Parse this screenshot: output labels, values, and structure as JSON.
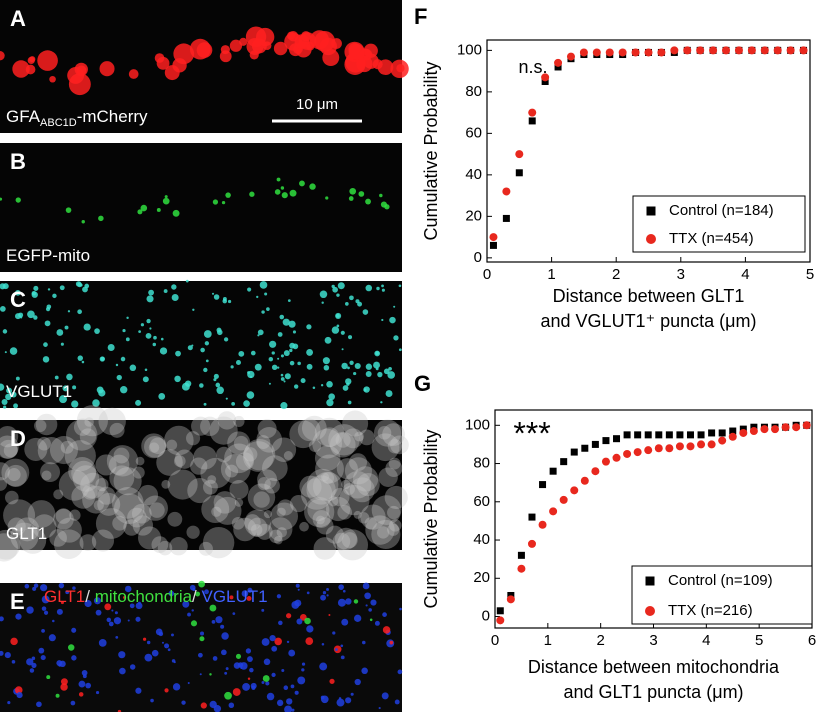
{
  "image_panels": [
    {
      "label": "A",
      "caption": [
        {
          "text": "GFA",
          "color": "#ffffff"
        },
        {
          "text": "ABC1D",
          "color": "#ffffff",
          "subscript": true
        },
        {
          "text": "-mCherry",
          "color": "#ffffff"
        }
      ],
      "scale_bar": "10 μm",
      "tint": "#ff2020"
    },
    {
      "label": "B",
      "caption": [
        {
          "text": "EGFP-mito",
          "color": "#ffffff"
        }
      ],
      "tint": "#30e040"
    },
    {
      "label": "C",
      "caption": [
        {
          "text": "VGLUT1",
          "color": "#ffffff"
        }
      ],
      "tint": "#40e0d0"
    },
    {
      "label": "D",
      "caption": [
        {
          "text": "GLT1",
          "color": "#ffffff"
        }
      ],
      "tint": "#c8c8c8"
    },
    {
      "label": "E",
      "caption": [
        {
          "text": "GLT1",
          "color": "#ff3030"
        },
        {
          "text": "/ ",
          "color": "#dddddd"
        },
        {
          "text": "mitochondria",
          "color": "#40e040"
        },
        {
          "text": "/ ",
          "color": "#dddddd"
        },
        {
          "text": "VGLUT1",
          "color": "#4060ff"
        }
      ],
      "tint": "#2040e0"
    }
  ],
  "chart_data": [
    {
      "type": "scatter",
      "panel_label": "F",
      "y_label": "Cumulative Probability",
      "x_label": [
        "Distance between GLT1",
        "and VGLUT1⁺ puncta (μm)"
      ],
      "annotation": "n.s.",
      "xlim": [
        0,
        5
      ],
      "xticks": [
        0,
        1,
        2,
        3,
        4,
        5
      ],
      "ylim": [
        -2,
        105
      ],
      "yticks": [
        0,
        20,
        40,
        60,
        80,
        100
      ],
      "series": [
        {
          "name": "Control (n=184)",
          "color": "#000000",
          "marker": "square",
          "x": [
            0.1,
            0.3,
            0.5,
            0.7,
            0.9,
            1.1,
            1.3,
            1.5,
            1.7,
            1.9,
            2.1,
            2.3,
            2.5,
            2.7,
            2.9,
            3.1,
            3.3,
            3.5,
            3.7,
            3.9,
            4.1,
            4.3,
            4.5,
            4.7,
            4.9
          ],
          "values": [
            6,
            19,
            41,
            66,
            85,
            92,
            96,
            98,
            98,
            98,
            98,
            99,
            99,
            99,
            99,
            100,
            100,
            100,
            100,
            100,
            100,
            100,
            100,
            100,
            100
          ]
        },
        {
          "name": "TTX (n=454)",
          "color": "#e8281e",
          "marker": "circle",
          "x": [
            0.1,
            0.3,
            0.5,
            0.7,
            0.9,
            1.1,
            1.3,
            1.5,
            1.7,
            1.9,
            2.1,
            2.3,
            2.5,
            2.7,
            2.9,
            3.1,
            3.3,
            3.5,
            3.7,
            3.9,
            4.1,
            4.3,
            4.5,
            4.7,
            4.9
          ],
          "values": [
            10,
            32,
            50,
            70,
            87,
            94,
            97,
            99,
            99,
            99,
            99,
            99,
            99,
            99,
            100,
            100,
            100,
            100,
            100,
            100,
            100,
            100,
            100,
            100,
            100
          ]
        }
      ]
    },
    {
      "type": "scatter",
      "panel_label": "G",
      "y_label": "Cumulative Probability",
      "x_label": [
        "Distance between mitochondria",
        "and GLT1 puncta (μm)"
      ],
      "annotation": "***",
      "xlim": [
        0,
        6
      ],
      "xticks": [
        0,
        1,
        2,
        3,
        4,
        5,
        6
      ],
      "ylim": [
        -6,
        108
      ],
      "yticks": [
        0,
        20,
        40,
        60,
        80,
        100
      ],
      "series": [
        {
          "name": "Control  (n=109)",
          "color": "#000000",
          "marker": "square",
          "x": [
            0.1,
            0.3,
            0.5,
            0.7,
            0.9,
            1.1,
            1.3,
            1.5,
            1.7,
            1.9,
            2.1,
            2.3,
            2.5,
            2.7,
            2.9,
            3.1,
            3.3,
            3.5,
            3.7,
            3.9,
            4.1,
            4.3,
            4.5,
            4.7,
            4.9,
            5.1,
            5.3,
            5.5,
            5.7,
            5.9
          ],
          "values": [
            3,
            11,
            32,
            52,
            69,
            76,
            81,
            86,
            88,
            90,
            92,
            93,
            95,
            95,
            95,
            95,
            95,
            95,
            95,
            95,
            96,
            96,
            97,
            98,
            99,
            99,
            99,
            99,
            100,
            100
          ]
        },
        {
          "name": "TTX (n=216)",
          "color": "#e8281e",
          "marker": "circle",
          "x": [
            0.1,
            0.3,
            0.5,
            0.7,
            0.9,
            1.1,
            1.3,
            1.5,
            1.7,
            1.9,
            2.1,
            2.3,
            2.5,
            2.7,
            2.9,
            3.1,
            3.3,
            3.5,
            3.7,
            3.9,
            4.1,
            4.3,
            4.5,
            4.7,
            4.9,
            5.1,
            5.3,
            5.5,
            5.7,
            5.9
          ],
          "values": [
            -2,
            9,
            25,
            38,
            48,
            55,
            61,
            66,
            71,
            76,
            81,
            83,
            85,
            86,
            87,
            88,
            88,
            89,
            89,
            90,
            90,
            92,
            94,
            96,
            97,
            98,
            98,
            99,
            99,
            100
          ]
        }
      ]
    }
  ]
}
